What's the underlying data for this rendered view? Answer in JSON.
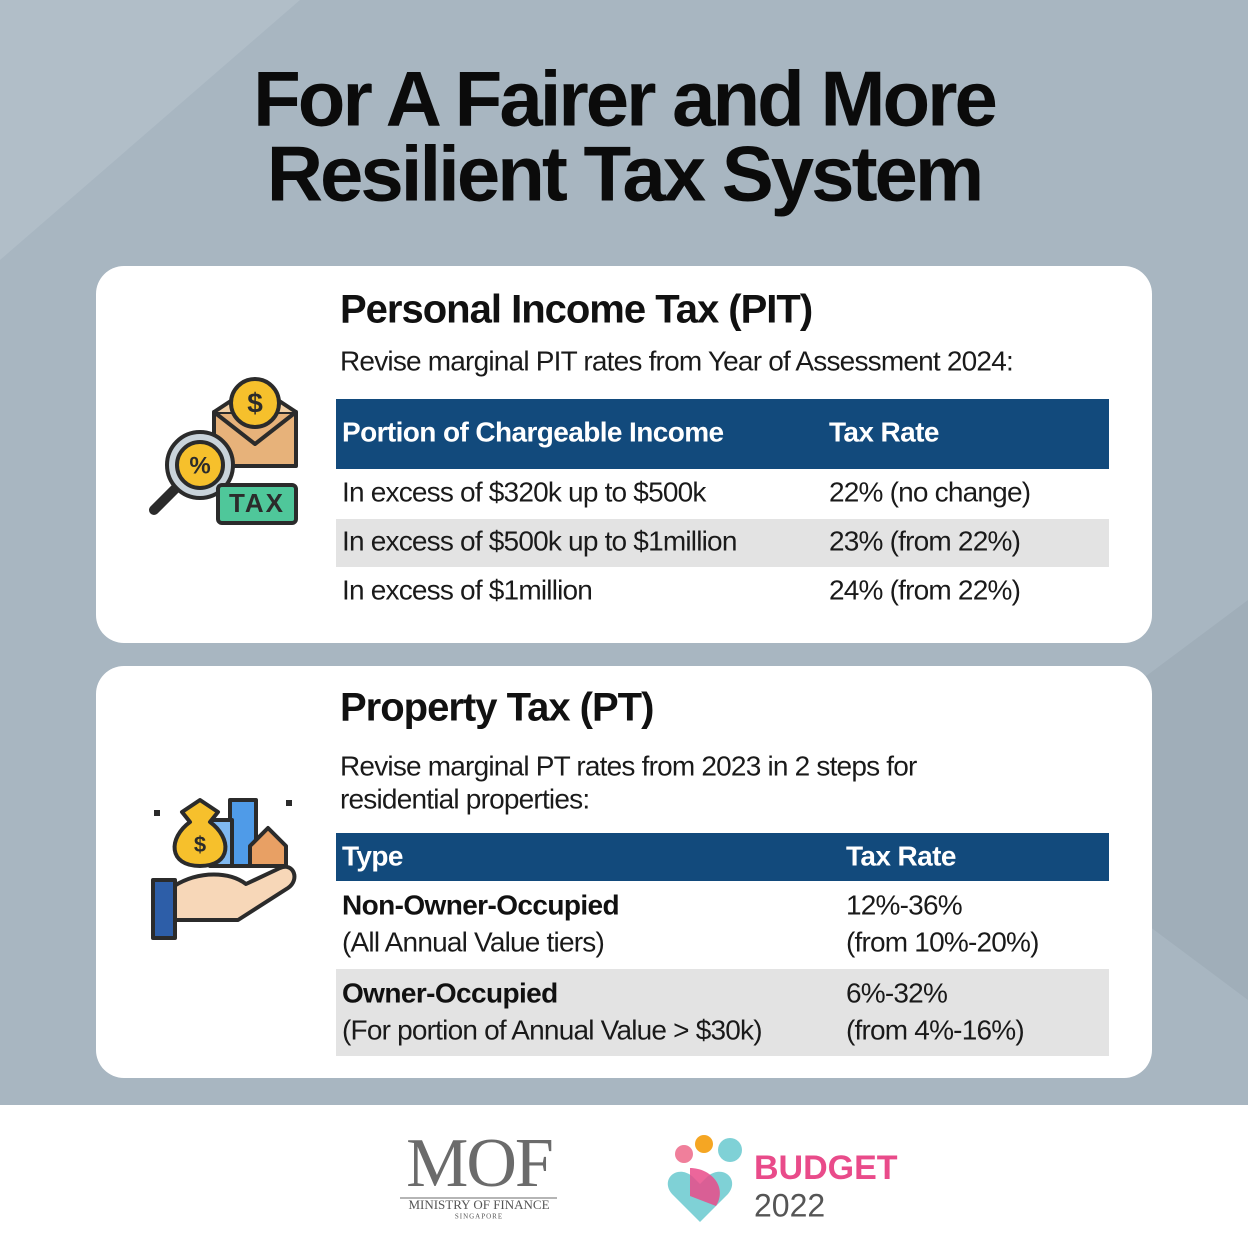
{
  "title": [
    "For A Fairer and More",
    "Resilient Tax System"
  ],
  "sections": [
    {
      "heading": "Personal Income Tax (PIT)",
      "description": [
        "Revise marginal PIT rates from Year of Assessment 2024:"
      ],
      "icon": {
        "coin": "$",
        "lens": "%",
        "tag": "TAX"
      },
      "table": {
        "header": [
          "Portion of Chargeable Income",
          "Tax Rate"
        ],
        "rows": [
          [
            "In excess of $320k up to $500k",
            "22% (no change)"
          ],
          [
            "In excess of $500k up to $1million",
            "23% (from 22%)"
          ],
          [
            "In excess of $1million",
            "24% (from 22%)"
          ]
        ]
      }
    },
    {
      "heading": "Property Tax (PT)",
      "description": [
        "Revise marginal PT rates from 2023 in 2 steps for",
        "residential properties:"
      ],
      "icon": {
        "bag": "$"
      },
      "table": {
        "header": [
          "Type",
          "Tax Rate"
        ],
        "rows": [
          [
            [
              "Non-Owner-Occupied",
              "(All Annual Value tiers)"
            ],
            [
              "12%-36%",
              "(from 10%-20%)"
            ]
          ],
          [
            [
              "Owner-Occupied",
              "(For portion of Annual Value > $30k)"
            ],
            [
              "6%-32%",
              "(from 4%-16%)"
            ]
          ]
        ]
      }
    }
  ],
  "footer": {
    "mof": {
      "name": "MOF",
      "full": "MINISTRY OF FINANCE",
      "country": "SINGAPORE"
    },
    "budget": {
      "word": "BUDGET",
      "year": "2022"
    }
  }
}
